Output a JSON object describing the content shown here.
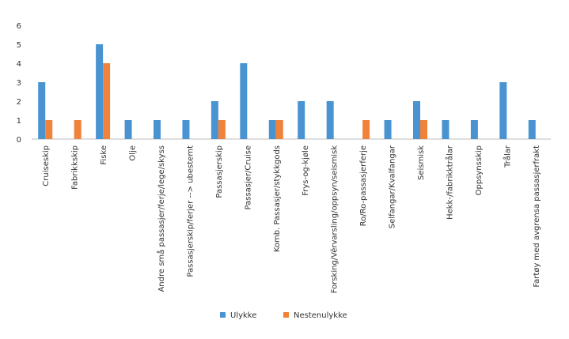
{
  "chart_data": {
    "type": "bar",
    "title": "",
    "xlabel": "",
    "ylabel": "",
    "ylim": [
      0,
      6
    ],
    "yticks": [
      0,
      1,
      2,
      3,
      4,
      5,
      6
    ],
    "grid": false,
    "legend_position": "bottom",
    "categories": [
      "Cruiseskip",
      "Fabrikkskip",
      "Fiske",
      "Olje",
      "Andre små passasjer/ferje/lege/skyss",
      "Passasjerskip/ferjer --> ubestemt",
      "Passasjerskip",
      "Passasjer/Cruise",
      "Komb. Passasjer/stykkgods",
      "Frys-og-kjøle",
      "Forsking/Vêrvarsling/oppsyn/seismisk",
      "Ro/Ro-passasjerferje",
      "Selfangar/Kvalfangar",
      "Seismisk",
      "Hekk-/fabrikktrålar",
      "Oppsynsskip",
      "Trålar",
      "Fartøy med avgrensa passasjerfrakt"
    ],
    "series": [
      {
        "name": "Ulykke",
        "color": "#4a93d1",
        "values": [
          3,
          0,
          5,
          1,
          1,
          1,
          2,
          4,
          1,
          2,
          2,
          0,
          1,
          2,
          1,
          1,
          3,
          1
        ]
      },
      {
        "name": "Nestenulykke",
        "color": "#f0823a",
        "values": [
          1,
          1,
          4,
          0,
          0,
          0,
          1,
          0,
          1,
          0,
          0,
          1,
          0,
          1,
          0,
          0,
          0,
          0
        ]
      }
    ]
  }
}
